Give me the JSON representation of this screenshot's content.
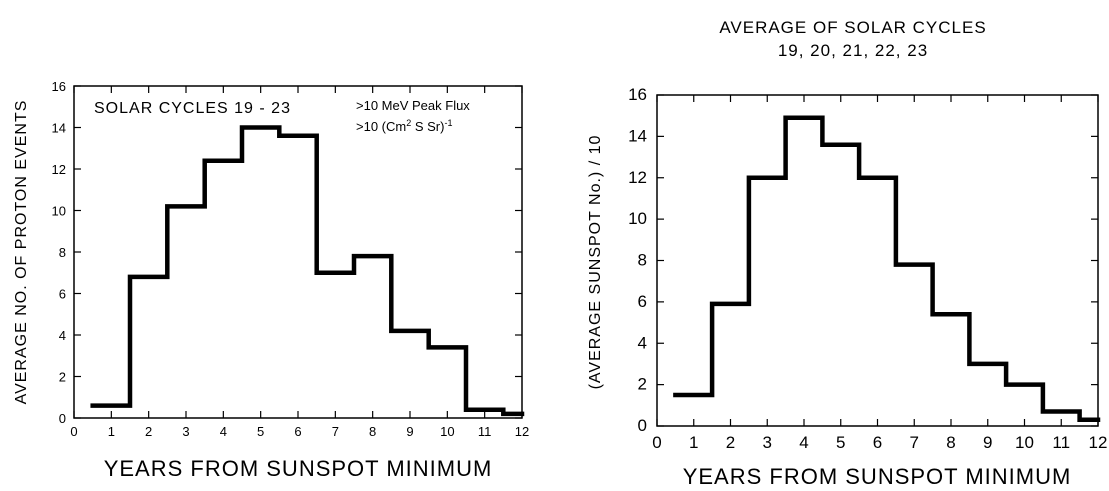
{
  "chart_data": [
    {
      "type": "bar",
      "step": true,
      "title": "",
      "annotations": {
        "label": "SOLAR CYCLES 19 - 23",
        "flux_line1": ">10 MeV Peak Flux",
        "flux_line2_base": ">10 (Cm",
        "flux_line2_sup": "2",
        "flux_line2_mid": " S Sr)",
        "flux_line2_sup2": "-1"
      },
      "xlabel": "YEARS FROM SUNSPOT MINIMUM",
      "ylabel": "AVERAGE NO. OF PROTON EVENTS",
      "xlim": [
        0,
        12
      ],
      "ylim": [
        0,
        16
      ],
      "xticks": [
        0,
        1,
        2,
        3,
        4,
        5,
        6,
        7,
        8,
        9,
        10,
        11,
        12
      ],
      "yticks": [
        0,
        2,
        4,
        6,
        8,
        10,
        12,
        14,
        16
      ],
      "x": [
        1,
        2,
        3,
        4,
        5,
        6,
        7,
        8,
        9,
        10,
        11,
        12
      ],
      "values": [
        0.6,
        6.8,
        10.2,
        12.4,
        14.0,
        13.6,
        7.0,
        7.8,
        4.2,
        3.4,
        0.4,
        0.2
      ]
    },
    {
      "type": "bar",
      "step": true,
      "title": "AVERAGE OF SOLAR CYCLES",
      "subtitle": "19, 20, 21, 22, 23",
      "xlabel": "YEARS FROM SUNSPOT MINIMUM",
      "ylabel": "(AVERAGE SUNSPOT No.) / 10",
      "xlim": [
        0,
        12
      ],
      "ylim": [
        0,
        16
      ],
      "xticks": [
        0,
        1,
        2,
        3,
        4,
        5,
        6,
        7,
        8,
        9,
        10,
        11,
        12
      ],
      "yticks": [
        0,
        2,
        4,
        6,
        8,
        10,
        12,
        14,
        16
      ],
      "x": [
        1,
        2,
        3,
        4,
        5,
        6,
        7,
        8,
        9,
        10,
        11,
        12
      ],
      "values": [
        1.5,
        5.9,
        12.0,
        14.9,
        13.6,
        12.0,
        7.8,
        5.4,
        3.0,
        2.0,
        0.7,
        0.3
      ]
    }
  ]
}
